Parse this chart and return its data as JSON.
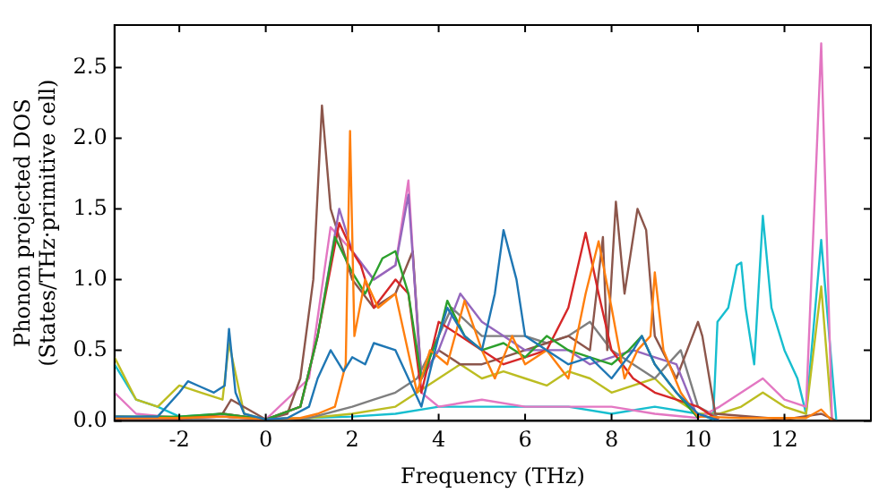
{
  "chart_data": {
    "type": "line",
    "xlabel": "Frequency (THz)",
    "ylabel": "Phonon projected DOS\n(States/THz·primitive cell)",
    "xlim": [
      -3.5,
      14
    ],
    "ylim": [
      0,
      2.8
    ],
    "xticks": [
      -2,
      0,
      2,
      4,
      6,
      8,
      10,
      12
    ],
    "yticks": [
      {
        "value": 0,
        "label": "0.0"
      },
      {
        "value": 0.5,
        "label": "0.5"
      },
      {
        "value": 1,
        "label": "1.0"
      },
      {
        "value": 1.5,
        "label": "1.5"
      },
      {
        "value": 2,
        "label": "2.0"
      },
      {
        "value": 2.5,
        "label": "2.5"
      }
    ],
    "grid": false,
    "legend": false,
    "marker": "none",
    "line_style": "solid",
    "series": [
      {
        "color": "#1f77b4",
        "x": [
          -3.5,
          -2.5,
          -2,
          -1.8,
          -1.5,
          -1.2,
          -0.95,
          -0.85,
          -0.7,
          -0.5,
          0,
          0.5,
          1,
          1.2,
          1.5,
          1.8,
          2,
          2.3,
          2.5,
          3,
          3.3,
          3.6,
          4,
          4.2,
          4.6,
          5,
          5.3,
          5.5,
          5.8,
          6,
          6.5,
          7,
          7.5,
          8,
          8.5,
          8.7,
          9,
          9.5,
          10,
          10.5
        ],
        "values": [
          0.03,
          0.03,
          0.2,
          0.28,
          0.24,
          0.2,
          0.25,
          0.65,
          0.2,
          0.05,
          0.01,
          0.02,
          0.1,
          0.3,
          0.5,
          0.35,
          0.45,
          0.4,
          0.55,
          0.5,
          0.3,
          0.1,
          0.6,
          0.8,
          0.6,
          0.5,
          0.9,
          1.35,
          1.0,
          0.6,
          0.5,
          0.4,
          0.45,
          0.3,
          0.5,
          0.6,
          0.4,
          0.2,
          0.05,
          0
        ]
      },
      {
        "color": "#ff7f0e",
        "x": [
          -3.5,
          -2,
          -1,
          0,
          0.8,
          1.2,
          1.6,
          1.85,
          1.95,
          2.05,
          2.3,
          2.6,
          3,
          3.5,
          3.8,
          4.2,
          4.6,
          5,
          5.3,
          5.7,
          6,
          6.5,
          7,
          7.4,
          7.7,
          8,
          8.3,
          8.6,
          8.9,
          9.0,
          9.2,
          9.6,
          10,
          11,
          12.5,
          12.85,
          13.1
        ],
        "values": [
          0.02,
          0.02,
          0.03,
          0.01,
          0.02,
          0.05,
          0.1,
          0.4,
          2.05,
          0.6,
          1.0,
          0.8,
          0.9,
          0.2,
          0.5,
          0.4,
          0.85,
          0.5,
          0.3,
          0.6,
          0.4,
          0.5,
          0.3,
          0.9,
          1.27,
          0.8,
          0.3,
          0.5,
          0.6,
          1.05,
          0.5,
          0.2,
          0.03,
          0.02,
          0.02,
          0.08,
          0
        ]
      },
      {
        "color": "#2ca02c",
        "x": [
          -3.5,
          -2,
          -1,
          0,
          0.8,
          1.2,
          1.6,
          2,
          2.3,
          2.7,
          3,
          3.3,
          3.6,
          4,
          4.2,
          4.6,
          5,
          5.5,
          6,
          6.5,
          7,
          7.5,
          8,
          8.4,
          8.7,
          9,
          9.5,
          10
        ],
        "values": [
          0.03,
          0.03,
          0.05,
          0.01,
          0.1,
          0.6,
          1.3,
          1.05,
          0.9,
          1.15,
          1.2,
          0.9,
          0.3,
          0.6,
          0.85,
          0.6,
          0.5,
          0.55,
          0.45,
          0.6,
          0.5,
          0.45,
          0.4,
          0.5,
          0.6,
          0.4,
          0.2,
          0.02
        ]
      },
      {
        "color": "#d62728",
        "x": [
          -3.5,
          -2,
          -1,
          0,
          0.8,
          1.2,
          1.7,
          2,
          2.2,
          2.5,
          3,
          3.3,
          3.6,
          4,
          4.5,
          5,
          5.5,
          6,
          6.5,
          7,
          7.4,
          7.7,
          8,
          8.5,
          9,
          9.5,
          10,
          10.5
        ],
        "values": [
          0.03,
          0.02,
          0.05,
          0.01,
          0.1,
          0.6,
          1.4,
          1.2,
          1.1,
          0.8,
          1.0,
          0.9,
          0.2,
          0.7,
          0.6,
          0.5,
          0.4,
          0.45,
          0.5,
          0.8,
          1.33,
          0.9,
          0.5,
          0.3,
          0.2,
          0.15,
          0.1,
          0
        ]
      },
      {
        "color": "#9467bd",
        "x": [
          -3.5,
          -2,
          -1,
          0,
          0.8,
          1.2,
          1.7,
          2,
          2.5,
          3,
          3.3,
          3.6,
          4,
          4.5,
          5,
          5.5,
          6,
          7,
          7.5,
          8,
          8.5,
          9,
          9.5,
          10
        ],
        "values": [
          0.02,
          0.02,
          0.03,
          0.01,
          0.1,
          0.6,
          1.5,
          1.2,
          1.0,
          1.1,
          1.6,
          0.3,
          0.5,
          0.9,
          0.7,
          0.6,
          0.5,
          0.5,
          0.4,
          0.45,
          0.5,
          0.45,
          0.4,
          0.02
        ]
      },
      {
        "color": "#8c564b",
        "x": [
          -3.5,
          -2,
          -1,
          -0.8,
          0,
          0.5,
          0.8,
          1.1,
          1.3,
          1.5,
          1.8,
          2,
          2.5,
          3,
          3.4,
          3.6,
          4,
          4.5,
          5,
          5.5,
          6,
          6.5,
          7,
          7.5,
          7.8,
          7.9,
          8.1,
          8.3,
          8.6,
          8.8,
          9.0,
          9.5,
          10,
          10.1,
          10.4,
          12,
          12.85,
          13.2
        ],
        "values": [
          0.01,
          0.01,
          0.05,
          0.15,
          0.01,
          0.05,
          0.3,
          1.0,
          2.23,
          1.5,
          1.2,
          1.0,
          0.8,
          0.9,
          1.2,
          0.3,
          0.5,
          0.4,
          0.4,
          0.45,
          0.5,
          0.55,
          0.6,
          0.5,
          1.3,
          0.5,
          1.55,
          0.9,
          1.5,
          1.35,
          0.6,
          0.3,
          0.7,
          0.6,
          0.05,
          0.01,
          0.05,
          0
        ]
      },
      {
        "color": "#e377c2",
        "x": [
          -3.5,
          -3,
          -2,
          -1,
          0,
          1,
          1.5,
          2,
          2.5,
          3,
          3.3,
          3.6,
          4,
          5,
          6,
          7,
          8,
          9,
          10,
          10.5,
          11,
          11.5,
          12,
          12.5,
          12.85,
          13.1
        ],
        "values": [
          0.2,
          0.05,
          0.02,
          0.03,
          0.01,
          0.3,
          1.37,
          1.2,
          1.0,
          1.1,
          1.7,
          0.2,
          0.1,
          0.15,
          0.1,
          0.1,
          0.1,
          0.05,
          0.02,
          0.1,
          0.2,
          0.3,
          0.15,
          0.1,
          2.67,
          0
        ]
      },
      {
        "color": "#7f7f7f",
        "x": [
          -3.5,
          -2,
          0,
          1,
          2,
          2.5,
          3,
          3.5,
          4,
          4.3,
          5,
          6,
          6.5,
          7,
          7.5,
          8,
          8.5,
          9,
          9.6,
          10,
          10.5
        ],
        "values": [
          0.01,
          0.01,
          0,
          0.02,
          0.1,
          0.15,
          0.2,
          0.3,
          0.6,
          0.8,
          0.6,
          0.6,
          0.55,
          0.6,
          0.7,
          0.5,
          0.4,
          0.3,
          0.5,
          0.1,
          0.02
        ]
      },
      {
        "color": "#bcbd22",
        "x": [
          -3.5,
          -3,
          -2.5,
          -2,
          -1.5,
          -1,
          -0.85,
          -0.5,
          0,
          1,
          2,
          3,
          3.5,
          4,
          4.5,
          5,
          5.5,
          6,
          6.5,
          7,
          7.5,
          8,
          8.5,
          9,
          9.5,
          10,
          10.5,
          11,
          11.5,
          12,
          12.5,
          12.85,
          13.1
        ],
        "values": [
          0.45,
          0.15,
          0.1,
          0.25,
          0.2,
          0.15,
          0.55,
          0.05,
          0.01,
          0.02,
          0.05,
          0.1,
          0.2,
          0.3,
          0.4,
          0.3,
          0.35,
          0.3,
          0.25,
          0.35,
          0.3,
          0.2,
          0.25,
          0.3,
          0.15,
          0.05,
          0.05,
          0.1,
          0.2,
          0.1,
          0.05,
          0.95,
          0
        ]
      },
      {
        "color": "#17becf",
        "x": [
          -3.5,
          -3,
          -2.5,
          -2,
          -1,
          0,
          1,
          2,
          3,
          4,
          5,
          6,
          7,
          8,
          9,
          10,
          10.35,
          10.45,
          10.7,
          10.9,
          11.0,
          11.1,
          11.3,
          11.5,
          11.7,
          12,
          12.3,
          12.5,
          12.85,
          13.2
        ],
        "values": [
          0.4,
          0.15,
          0.1,
          0.03,
          0.05,
          0.01,
          0.02,
          0.03,
          0.05,
          0.1,
          0.1,
          0.1,
          0.1,
          0.05,
          0.1,
          0.05,
          0.01,
          0.7,
          0.8,
          1.1,
          1.12,
          0.8,
          0.4,
          1.45,
          0.8,
          0.5,
          0.3,
          0.05,
          1.28,
          0
        ]
      }
    ]
  }
}
